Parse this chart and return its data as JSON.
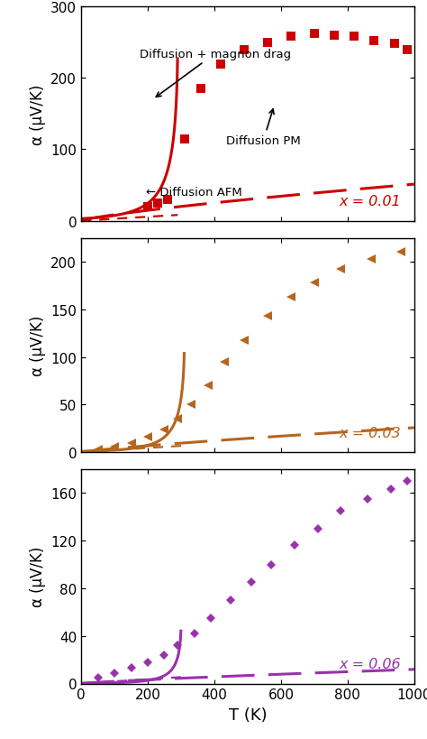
{
  "panels": [
    {
      "y_label": "α (μV/K)",
      "ylim": [
        0,
        300
      ],
      "yticks": [
        0,
        100,
        200,
        300
      ],
      "color": "#cc0000",
      "x_label_text": "x = 0.01",
      "T_Neel": 290
    },
    {
      "y_label": "α (μV/K)",
      "ylim": [
        0,
        225
      ],
      "yticks": [
        0,
        50,
        100,
        150,
        200
      ],
      "color": "#b5651d",
      "x_label_text": "x = 0.03",
      "T_Neel": 310
    },
    {
      "y_label": "α (μV/K)",
      "ylim": [
        0,
        180
      ],
      "yticks": [
        0,
        40,
        80,
        120,
        160
      ],
      "color": "#9933aa",
      "x_label_text": "x = 0.06",
      "T_Neel": 300
    }
  ],
  "xlim": [
    0,
    1000
  ],
  "xticks": [
    0,
    200,
    400,
    600,
    800,
    1000
  ],
  "xlabel": "T (K)",
  "figsize": [
    4.74,
    8.2
  ],
  "dpi": 100
}
